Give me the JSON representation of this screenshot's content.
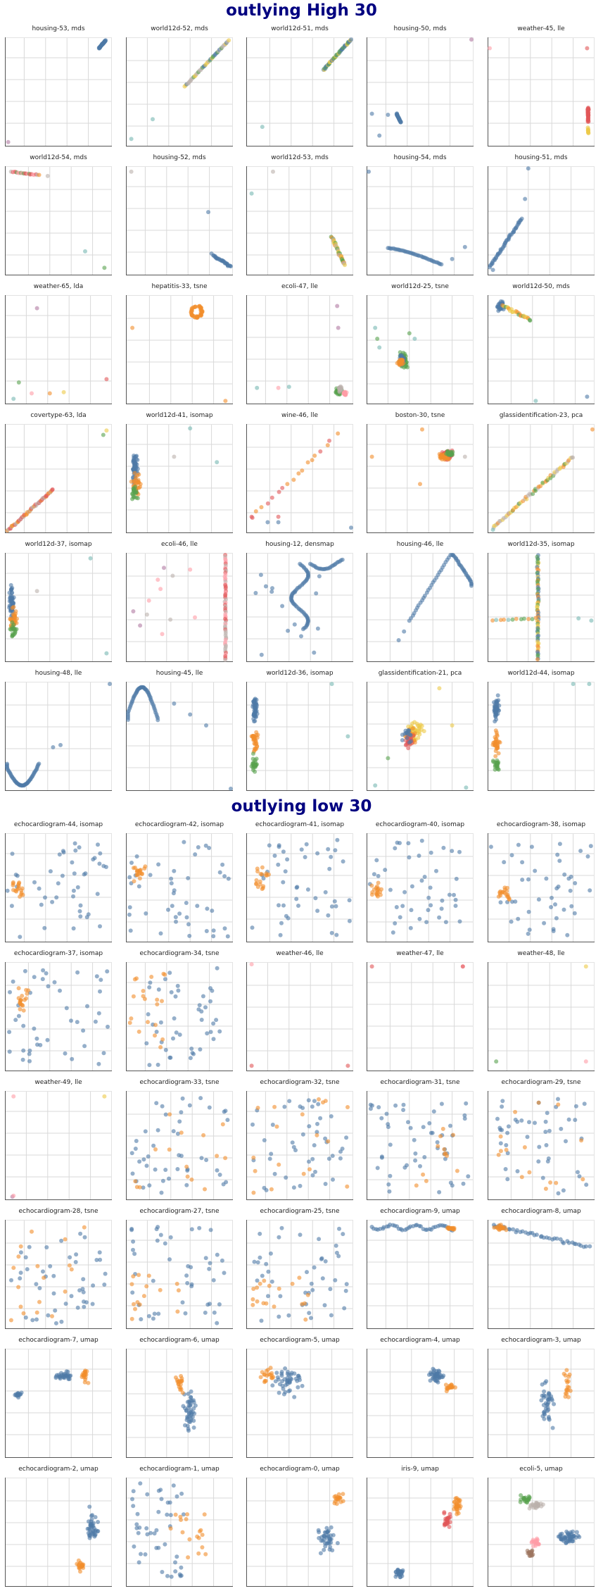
{
  "sections": [
    {
      "title": "outlying High 30",
      "panels": [
        {
          "title": "housing-53, mds"
        },
        {
          "title": "world12d-52, mds"
        },
        {
          "title": "world12d-51, mds"
        },
        {
          "title": "housing-50, mds"
        },
        {
          "title": "weather-45, lle"
        },
        {
          "title": "world12d-54, mds"
        },
        {
          "title": "housing-52, mds"
        },
        {
          "title": "world12d-53, mds"
        },
        {
          "title": "housing-54, mds"
        },
        {
          "title": "housing-51, mds"
        },
        {
          "title": "weather-65, lda"
        },
        {
          "title": "hepatitis-33, tsne"
        },
        {
          "title": "ecoli-47, lle"
        },
        {
          "title": "world12d-25, tsne"
        },
        {
          "title": "world12d-50, mds"
        },
        {
          "title": "covertype-63, lda"
        },
        {
          "title": "world12d-41, isomap"
        },
        {
          "title": "wine-46, lle"
        },
        {
          "title": "boston-30, tsne"
        },
        {
          "title": "glassidentification-23, pca"
        },
        {
          "title": "world12d-37, isomap"
        },
        {
          "title": "ecoli-46, lle"
        },
        {
          "title": "housing-12, densmap"
        },
        {
          "title": "housing-46, lle"
        },
        {
          "title": "world12d-35, isomap"
        },
        {
          "title": "housing-48, lle"
        },
        {
          "title": "housing-45, lle"
        },
        {
          "title": "world12d-36, isomap"
        },
        {
          "title": "glassidentification-21, pca"
        },
        {
          "title": "world12d-44, isomap"
        }
      ]
    },
    {
      "title": "outlying low 30",
      "panels": [
        {
          "title": "echocardiogram-44, isomap"
        },
        {
          "title": "echocardiogram-42, isomap"
        },
        {
          "title": "echocardiogram-41, isomap"
        },
        {
          "title": "echocardiogram-40, isomap"
        },
        {
          "title": "echocardiogram-38, isomap"
        },
        {
          "title": "echocardiogram-37, isomap"
        },
        {
          "title": "echocardiogram-34, tsne"
        },
        {
          "title": "weather-46, lle"
        },
        {
          "title": "weather-47, lle"
        },
        {
          "title": "weather-48, lle"
        },
        {
          "title": "weather-49, lle"
        },
        {
          "title": "echocardiogram-33, tsne"
        },
        {
          "title": "echocardiogram-32, tsne"
        },
        {
          "title": "echocardiogram-31, tsne"
        },
        {
          "title": "echocardiogram-29, tsne"
        },
        {
          "title": "echocardiogram-28, tsne"
        },
        {
          "title": "echocardiogram-27, tsne"
        },
        {
          "title": "echocardiogram-25, tsne"
        },
        {
          "title": "echocardiogram-9, umap"
        },
        {
          "title": "echocardiogram-8, umap"
        },
        {
          "title": "echocardiogram-7, umap"
        },
        {
          "title": "echocardiogram-6, umap"
        },
        {
          "title": "echocardiogram-5, umap"
        },
        {
          "title": "echocardiogram-4, umap"
        },
        {
          "title": "echocardiogram-3, umap"
        },
        {
          "title": "echocardiogram-2, umap"
        },
        {
          "title": "echocardiogram-1, umap"
        },
        {
          "title": "echocardiogram-0, umap"
        },
        {
          "title": "iris-9, umap"
        },
        {
          "title": "ecoli-5, umap"
        }
      ]
    }
  ],
  "chart_data": {
    "type": "scatter",
    "grid": true,
    "colors": [
      "#4e79a7",
      "#f28e2b",
      "#e15759",
      "#76b7b2",
      "#59a14f",
      "#edc948",
      "#b07aa1",
      "#ff9da7",
      "#9c755f",
      "#bab0ac"
    ]
  }
}
